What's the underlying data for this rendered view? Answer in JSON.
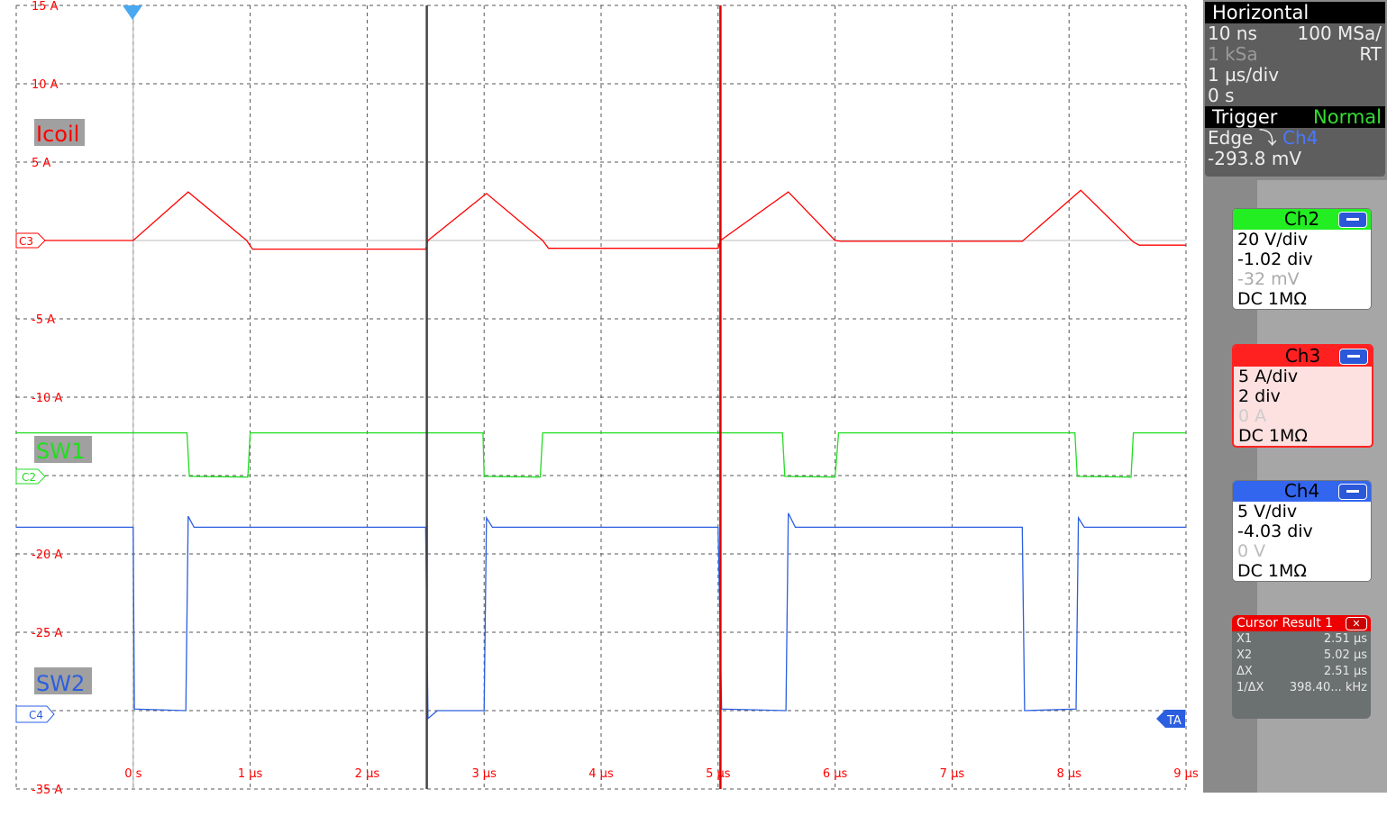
{
  "chart_data": {
    "type": "line",
    "x_unit": "µs",
    "xlim": [
      -1,
      9
    ],
    "ylim": [
      -35,
      15
    ],
    "y_unit": "A",
    "grid": true,
    "x_tick_labels": [
      "0 s",
      "1 µs",
      "2 µs",
      "3 µs",
      "4 µs",
      "5 µs",
      "6 µs",
      "7 µs",
      "8 µs",
      "9 µs"
    ],
    "x_ticks": [
      0,
      1,
      2,
      3,
      4,
      5,
      6,
      7,
      8,
      9
    ],
    "y_tick_labels": [
      "15 A",
      "10 A",
      "5 A",
      "-5 A",
      "-10 A",
      "-20 A",
      "-25 A",
      "-35 A"
    ],
    "y_ticks": [
      15,
      10,
      5,
      -5,
      -10,
      -20,
      -25,
      -35
    ],
    "series": [
      {
        "name": "Icoil",
        "channel": "C3",
        "color": "#ff0000",
        "scale_per_div": 5,
        "ground_div": 0,
        "points": [
          [
            -1,
            0
          ],
          [
            0,
            0
          ],
          [
            0.47,
            3.1
          ],
          [
            0.97,
            0
          ],
          [
            1.02,
            -0.55
          ],
          [
            2.5,
            -0.55
          ],
          [
            2.52,
            0
          ],
          [
            3.02,
            3.0
          ],
          [
            3.5,
            0
          ],
          [
            3.55,
            -0.5
          ],
          [
            5.0,
            -0.5
          ],
          [
            5.02,
            0
          ],
          [
            5.6,
            3.1
          ],
          [
            6.0,
            0
          ],
          [
            6.05,
            -0.05
          ],
          [
            7.6,
            -0.05
          ],
          [
            8.1,
            3.2
          ],
          [
            8.55,
            -0.1
          ],
          [
            8.6,
            -0.3
          ],
          [
            9,
            -0.3
          ]
        ]
      },
      {
        "name": "SW1",
        "channel": "C2",
        "color": "#22dd22",
        "scale_per_div": 20,
        "ground_div": -3.02,
        "points": [
          [
            -1,
            11.3
          ],
          [
            0.46,
            11.3
          ],
          [
            0.48,
            0.2
          ],
          [
            0.98,
            0
          ],
          [
            1.0,
            11.3
          ],
          [
            2.99,
            11.3
          ],
          [
            3.0,
            0.2
          ],
          [
            3.48,
            0
          ],
          [
            3.5,
            11.3
          ],
          [
            5.55,
            11.3
          ],
          [
            5.57,
            0.2
          ],
          [
            6.0,
            0
          ],
          [
            6.03,
            11.3
          ],
          [
            8.05,
            11.3
          ],
          [
            8.07,
            0.2
          ],
          [
            8.53,
            0
          ],
          [
            8.55,
            11.3
          ],
          [
            9,
            11.3
          ]
        ]
      },
      {
        "name": "SW2",
        "channel": "C4",
        "color": "#2c5fe0",
        "scale_per_div": 5,
        "ground_div": -6.04,
        "points": [
          [
            -1,
            11.9
          ],
          [
            0,
            11.9
          ],
          [
            0.01,
            0.3
          ],
          [
            0.45,
            0.2
          ],
          [
            0.47,
            12.6
          ],
          [
            0.52,
            11.9
          ],
          [
            2.5,
            11.9
          ],
          [
            2.52,
            -0.3
          ],
          [
            2.6,
            0.2
          ],
          [
            3.0,
            0.2
          ],
          [
            3.02,
            12.5
          ],
          [
            3.07,
            11.9
          ],
          [
            5.0,
            11.9
          ],
          [
            5.03,
            0.3
          ],
          [
            5.58,
            0.2
          ],
          [
            5.6,
            12.8
          ],
          [
            5.66,
            11.9
          ],
          [
            7.6,
            11.9
          ],
          [
            7.62,
            0.2
          ],
          [
            8.06,
            0.3
          ],
          [
            8.08,
            12.5
          ],
          [
            8.13,
            11.9
          ],
          [
            9,
            11.9
          ]
        ]
      }
    ],
    "cursors": [
      {
        "name": "X1",
        "value": 2.51,
        "color": "#444444"
      },
      {
        "name": "X2",
        "value": 5.02,
        "color": "#dd0000"
      }
    ],
    "trigger_position": 0
  },
  "markers": {
    "c3": "C3",
    "c2": "C2",
    "c4": "C4",
    "ta": "TA"
  },
  "horizontal": {
    "title": "Horizontal",
    "resolution": "10 ns",
    "sample_rate": "100 MSa/",
    "record": "1 kSa",
    "mode": "RT",
    "timebase": "1 µs/div",
    "position": "0 s"
  },
  "trigger": {
    "title": "Trigger",
    "mode": "Normal",
    "type": "Edge",
    "source": "Ch4",
    "level": "-293.8 mV"
  },
  "channels": [
    {
      "name": "Ch2",
      "scale": "20 V/div",
      "offset": "-1.02 div",
      "position": "-32 mV",
      "coupling": "DC 1MΩ",
      "color": "#22ee22"
    },
    {
      "name": "Ch3",
      "scale": "5 A/div",
      "offset": "2 div",
      "position": "0 A",
      "coupling": "DC 1MΩ",
      "color": "#ff2020"
    },
    {
      "name": "Ch4",
      "scale": "5 V/div",
      "offset": "-4.03 div",
      "position": "0 V",
      "coupling": "DC 1MΩ",
      "color": "#3366ee"
    }
  ],
  "cursor_result": {
    "title": "Cursor Result 1",
    "close": "✕",
    "rows": [
      {
        "label": "X1",
        "value": "2.51 µs"
      },
      {
        "label": "X2",
        "value": "5.02 µs"
      },
      {
        "label": "ΔX",
        "value": "2.51 µs"
      },
      {
        "label": "1/ΔX",
        "value": "398.40... kHz"
      }
    ]
  }
}
